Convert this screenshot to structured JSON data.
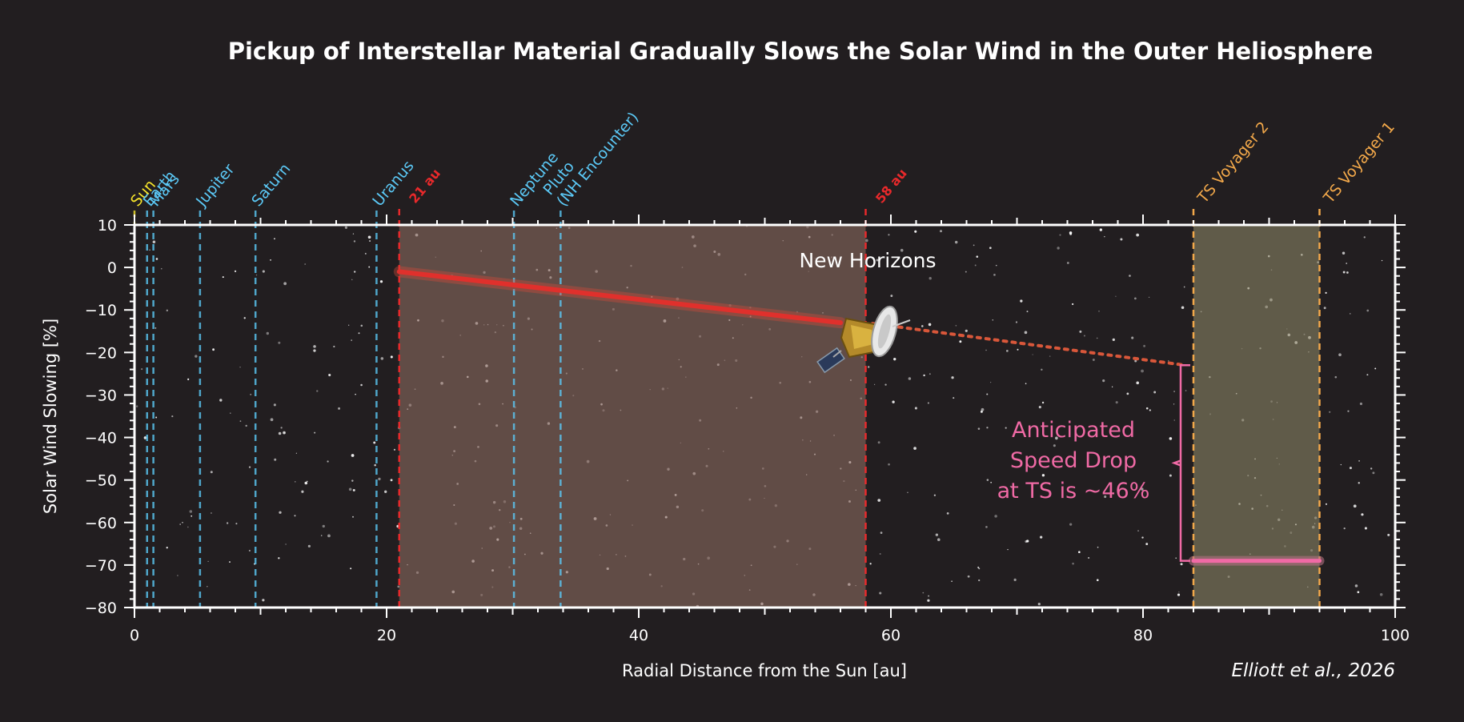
{
  "chart_data": {
    "type": "line",
    "title": "Pickup of Interstellar Material Gradually Slows the Solar Wind in the Outer Heliosphere",
    "xlabel": "Radial Distance from the Sun [au]",
    "ylabel": "Solar Wind Slowing [%]",
    "xlim": [
      0,
      100
    ],
    "ylim": [
      -80,
      10
    ],
    "xticks": [
      0,
      20,
      40,
      60,
      80,
      100
    ],
    "yticks": [
      10,
      0,
      -10,
      -20,
      -30,
      -40,
      -50,
      -60,
      -70,
      -80
    ],
    "credit": "Elliott et al., 2026",
    "planets": [
      {
        "name": "Sun",
        "x": 0,
        "color": "#f5e32a"
      },
      {
        "name": "Earth",
        "x": 1,
        "color": "#5bc8f5"
      },
      {
        "name": "Mars",
        "x": 1.5,
        "color": "#5bc8f5"
      },
      {
        "name": "Jupiter",
        "x": 5.2,
        "color": "#5bc8f5"
      },
      {
        "name": "Saturn",
        "x": 9.6,
        "color": "#5bc8f5"
      },
      {
        "name": "Uranus",
        "x": 19.2,
        "color": "#5bc8f5"
      },
      {
        "name": "Neptune",
        "x": 30.1,
        "color": "#5bc8f5"
      },
      {
        "name": "Pluto\n(NH Encounter)",
        "x": 33.8,
        "color": "#5bc8f5"
      }
    ],
    "boundaries": [
      {
        "label": "21 au",
        "x": 21,
        "color": "#e8292b"
      },
      {
        "label": "58 au",
        "x": 58,
        "color": "#e8292b"
      },
      {
        "label": "TS Voyager 2",
        "x": 84,
        "color": "#f2a84a"
      },
      {
        "label": "TS Voyager 1",
        "x": 94,
        "color": "#f2a84a"
      }
    ],
    "measured_fit": {
      "x": [
        21,
        56
      ],
      "y": [
        -1,
        -13
      ],
      "color": "#e0302c"
    },
    "extrapolation": {
      "x": [
        56,
        84
      ],
      "y": [
        -13,
        -23
      ],
      "color": "#d9573a"
    },
    "ts_level": {
      "x": [
        84,
        94
      ],
      "y": [
        -69,
        -69
      ],
      "color": "#f06aa5"
    },
    "measured_region": {
      "x": [
        21,
        58
      ]
    },
    "ts_region": {
      "x": [
        84,
        94
      ]
    },
    "spacecraft_label": "New Horizons",
    "annotation": {
      "lines": [
        "Anticipated",
        "Speed Drop",
        "at TS is ~46%"
      ],
      "color": "#f06aa5",
      "bracket_y": [
        -23,
        -69
      ]
    },
    "grid": false
  }
}
